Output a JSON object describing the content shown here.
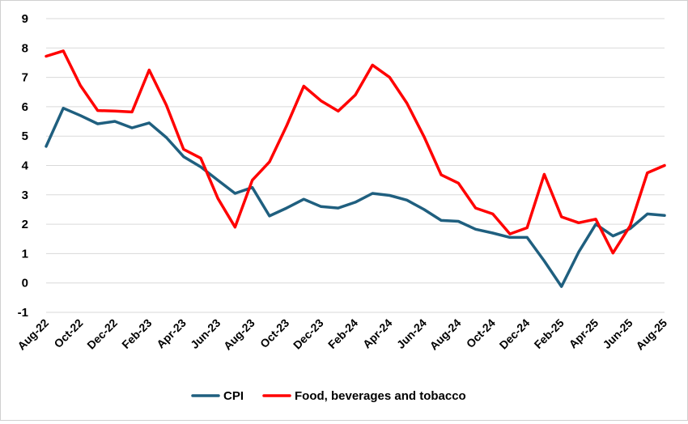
{
  "chart_data": {
    "type": "line",
    "categories": [
      "Aug-22",
      "Sep-22",
      "Oct-22",
      "Nov-22",
      "Dec-22",
      "Jan-23",
      "Feb-23",
      "Mar-23",
      "Apr-23",
      "May-23",
      "Jun-23",
      "Jul-23",
      "Aug-23",
      "Sep-23",
      "Oct-23",
      "Nov-23",
      "Dec-23",
      "Jan-24",
      "Feb-24",
      "Mar-24",
      "Apr-24",
      "May-24",
      "Jun-24",
      "Jul-24",
      "Aug-24",
      "Sep-24",
      "Oct-24",
      "Nov-24",
      "Dec-24",
      "Jan-25",
      "Feb-25",
      "Mar-25",
      "Apr-25",
      "May-25",
      "Jun-25",
      "Jul-25",
      "Aug-25"
    ],
    "tick_labels": [
      "Aug-22",
      "Oct-22",
      "Dec-22",
      "Feb-23",
      "Apr-23",
      "Jun-23",
      "Aug-23",
      "Oct-23",
      "Dec-23",
      "Feb-24",
      "Apr-24",
      "Jun-24",
      "Aug-24",
      "Oct-24",
      "Dec-24",
      "Feb-25",
      "Apr-25",
      "Jun-25",
      "Aug-25"
    ],
    "series": [
      {
        "name": "CPI",
        "color": "#1f5f7f",
        "values": [
          4.65,
          5.95,
          5.7,
          5.42,
          5.5,
          5.28,
          5.45,
          4.95,
          4.3,
          3.95,
          3.5,
          3.05,
          3.25,
          2.28,
          2.55,
          2.85,
          2.6,
          2.55,
          2.75,
          3.05,
          2.98,
          2.82,
          2.5,
          2.13,
          2.1,
          1.83,
          1.7,
          1.55,
          1.55,
          0.75,
          -0.12,
          1.05,
          2.0,
          1.6,
          1.85,
          2.35,
          2.3
        ]
      },
      {
        "name": "Food, beverages and tobacco",
        "color": "#ff0000",
        "values": [
          7.72,
          7.9,
          6.72,
          5.87,
          5.85,
          5.82,
          7.25,
          6.05,
          4.55,
          4.25,
          2.88,
          1.9,
          3.5,
          4.12,
          5.35,
          6.7,
          6.2,
          5.85,
          6.4,
          7.42,
          7.0,
          6.12,
          4.98,
          3.68,
          3.4,
          2.55,
          2.35,
          1.67,
          1.88,
          3.7,
          2.25,
          2.05,
          2.17,
          1.02,
          1.95,
          3.75,
          4.0
        ]
      }
    ],
    "yticks": [
      "-1",
      "0",
      "1",
      "2",
      "3",
      "4",
      "5",
      "6",
      "7",
      "8",
      "9"
    ],
    "ylim": [
      -1,
      9
    ],
    "grid": true,
    "legend_position": "bottom"
  }
}
